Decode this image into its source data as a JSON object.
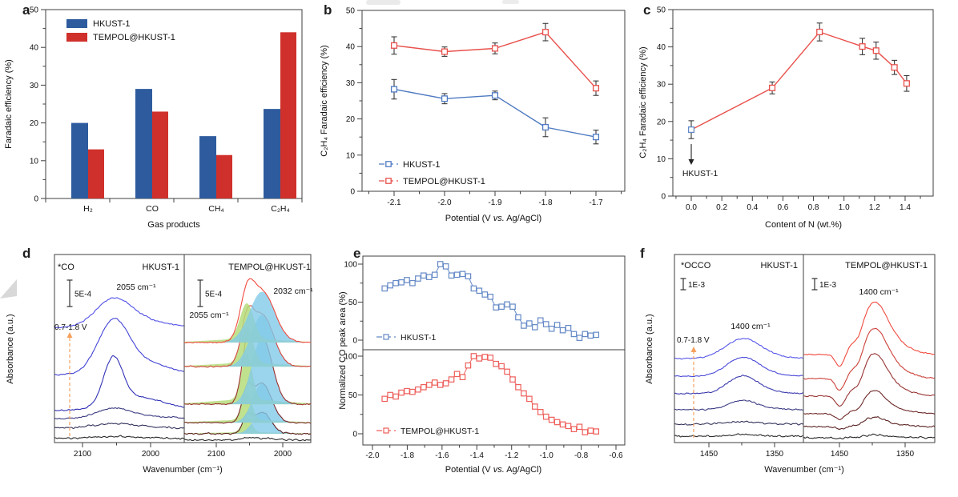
{
  "chart_data": [
    {
      "id": "a",
      "type": "bar",
      "label": "a",
      "xlabel": "Gas products",
      "ylabel": "Faradaic efficiency (%)",
      "ylim": [
        0,
        50
      ],
      "yticks": [
        0,
        10,
        20,
        30,
        40,
        50
      ],
      "categories": [
        "H₂",
        "CO",
        "CH₄",
        "C₂H₄"
      ],
      "series": [
        {
          "name": "HKUST-1",
          "color": "#2e5b9e",
          "values": [
            20,
            29,
            16.5,
            23.7
          ]
        },
        {
          "name": "TEMPOL@HKUST-1",
          "color": "#d0302b",
          "values": [
            13,
            23,
            11.5,
            44
          ]
        }
      ],
      "legend_position": "top-left"
    },
    {
      "id": "b",
      "type": "line",
      "label": "b",
      "xlabel_parts": [
        "Potential (V ",
        "vs.",
        " Ag/AgCl)"
      ],
      "ylabel": "C₂H₄ Faradaic efficiency (%)",
      "ylim": [
        0,
        50
      ],
      "yticks": [
        0,
        10,
        20,
        30,
        40,
        50
      ],
      "x": [
        -2.1,
        -2.0,
        -1.9,
        -1.8,
        -1.7
      ],
      "xticks": [
        "-2.1",
        "-2.0",
        "-1.9",
        "-1.8",
        "-1.7"
      ],
      "error_color": "#3a3a3a",
      "series": [
        {
          "name": "HKUST-1",
          "color": "#4f7ac2",
          "values": [
            28.2,
            25.6,
            26.5,
            17.7,
            15.0
          ],
          "errors": [
            2.7,
            1.4,
            1.2,
            2.6,
            1.9
          ]
        },
        {
          "name": "TEMPOL@HKUST-1",
          "color": "#e8514c",
          "values": [
            40.3,
            38.6,
            39.5,
            44.0,
            28.5
          ],
          "errors": [
            2.4,
            1.3,
            1.5,
            2.4,
            2.0
          ]
        }
      ]
    },
    {
      "id": "c",
      "type": "line",
      "label": "c",
      "xlabel": "Content of N (wt.%)",
      "ylabel": "C₂H₄ Faradaic efficiency (%)",
      "ylim": [
        0,
        50
      ],
      "yticks": [
        0,
        10,
        20,
        30,
        40,
        50
      ],
      "xticks": [
        "0.0",
        "0.2",
        "0.4",
        "0.6",
        "0.8",
        "1.0",
        "1.2",
        "1.4"
      ],
      "x": [
        0.0,
        0.53,
        0.84,
        1.12,
        1.21,
        1.33,
        1.41
      ],
      "y": [
        17.8,
        29.0,
        44.0,
        40.1,
        39.0,
        34.5,
        30.2
      ],
      "errors": [
        2.4,
        1.6,
        2.4,
        2.2,
        2.3,
        1.9,
        2.1
      ],
      "line_color": "#e8514c",
      "marker_color": "#e8514c",
      "first_marker_color": "#6489c6",
      "error_color": "#3a3a3a",
      "annotation": "HKUST-1"
    },
    {
      "id": "d",
      "type": "spectra",
      "label": "d",
      "xlabel": "Wavenumber (cm⁻¹)",
      "ylabel": "Absorbance (a.u.)",
      "x_ticks": [
        "2100",
        "2000"
      ],
      "voltage_range_label": "0.7-1.8 V",
      "panels": [
        {
          "title": "HKUST-1",
          "species_label": "*CO",
          "scalebar_label": "5E-4",
          "peak_labels": [
            "2055 cm⁻¹"
          ],
          "x_range": [
            2141,
            1950
          ],
          "peak_center": 2055,
          "traces": [
            {
              "color": "#2b2b2b",
              "offset": 0.022,
              "amp": 0.01,
              "sigma": 30
            },
            {
              "color": "#33335c",
              "offset": 0.077,
              "amp": 0.025,
              "sigma": 28
            },
            {
              "color": "#3b3b80",
              "offset": 0.128,
              "amp": 0.055,
              "sigma": 24
            },
            {
              "color": "#3232b8",
              "offset": 0.17,
              "amp": 0.29,
              "sigma": 14
            },
            {
              "color": "#4343d6",
              "offset": 0.36,
              "amp": 0.3,
              "sigma": 22
            },
            {
              "color": "#5050e8",
              "offset": 0.61,
              "amp": 0.16,
              "sigma": 26
            }
          ]
        },
        {
          "title": "TEMPOL@HKUST-1",
          "scalebar_label": "5E-4",
          "peak_labels": [
            "2055 cm⁻¹",
            "2032 cm⁻¹"
          ],
          "x_range": [
            2148,
            1958
          ],
          "fit_fills": [
            {
              "name": "2055 component",
              "color": "#b5dc7a",
              "center": 2054,
              "sigma": 10,
              "rel_amp": 0.62
            },
            {
              "name": "2032 component",
              "color": "#82cbe8",
              "center": 2031,
              "sigma": 19,
              "rel_amp": 0.88
            }
          ],
          "traces": [
            {
              "color": "#2b2b2b",
              "offset": 0.013,
              "amp": 0.012,
              "sigma": 20
            },
            {
              "color": "#5f2222",
              "offset": 0.047,
              "amp": 0.115,
              "sigma": 14
            },
            {
              "color": "#7c2828",
              "offset": 0.106,
              "amp": 0.213,
              "sigma": 15
            },
            {
              "color": "#9c302d",
              "offset": 0.204,
              "amp": 0.38,
              "sigma": 16
            },
            {
              "color": "#d4433c",
              "offset": 0.404,
              "amp": 0.323,
              "sigma": 18
            },
            {
              "color": "#f04a3e",
              "offset": 0.532,
              "amp": 0.34,
              "sigma": 20
            }
          ]
        }
      ]
    },
    {
      "id": "e",
      "type": "scatter",
      "label": "e",
      "xlabel_parts": [
        "Potential (V ",
        "vs.",
        " Ag/AgCl)"
      ],
      "ylabel": "Normalized CO peak area (%)",
      "yticks": [
        0,
        50,
        100
      ],
      "xticks": [
        "-2.0",
        "-1.8",
        "-1.6",
        "-1.4",
        "-1.2",
        "-1.0",
        "-0.8",
        "-0.6"
      ],
      "x": [
        -1.93,
        -1.898,
        -1.866,
        -1.834,
        -1.802,
        -1.77,
        -1.738,
        -1.706,
        -1.674,
        -1.642,
        -1.61,
        -1.578,
        -1.546,
        -1.514,
        -1.482,
        -1.45,
        -1.418,
        -1.386,
        -1.354,
        -1.322,
        -1.29,
        -1.258,
        -1.226,
        -1.194,
        -1.162,
        -1.13,
        -1.098,
        -1.066,
        -1.034,
        -1.002,
        -0.97,
        -0.938,
        -0.906,
        -0.874,
        -0.842,
        -0.81,
        -0.778,
        -0.746,
        -0.714
      ],
      "series": [
        {
          "name": "HKUST-1",
          "color": "#6489c6",
          "values": [
            68,
            72,
            75,
            76,
            79,
            75,
            81,
            85,
            83,
            86,
            100,
            97,
            85,
            86,
            87,
            84,
            68,
            65,
            60,
            57,
            43,
            44,
            47,
            44,
            30,
            19,
            22,
            17,
            26,
            21,
            15,
            20,
            13,
            16,
            8,
            3,
            8,
            6,
            7
          ]
        },
        {
          "name": "TEMPOL@HKUST-1",
          "color": "#ed5f5b",
          "values": [
            45,
            50,
            48,
            53,
            55,
            54,
            57,
            60,
            63,
            66,
            63,
            65,
            70,
            77,
            73,
            88,
            100,
            97,
            99,
            98,
            90,
            87,
            80,
            70,
            60,
            52,
            45,
            35,
            28,
            22,
            18,
            15,
            12,
            10,
            6,
            9,
            2,
            4,
            3
          ]
        }
      ]
    },
    {
      "id": "f",
      "type": "spectra",
      "label": "f",
      "xlabel": "Wavenumber (cm⁻¹)",
      "ylabel": "Absorbance (a.u.)",
      "x_ticks": [
        "1450",
        "1350"
      ],
      "voltage_range_label": "0.7-1.8 V",
      "panels": [
        {
          "title": "HKUST-1",
          "species_label": "*OCCO",
          "scalebar_label": "1E-3",
          "peak_labels": [
            "1400 cm⁻¹"
          ],
          "x_range": [
            1502,
            1307
          ],
          "peak_center": 1400,
          "traces": [
            {
              "color": "#2b2b2b",
              "offset": 0.034,
              "amp": 0.008,
              "sigma": 20
            },
            {
              "color": "#32325a",
              "offset": 0.098,
              "amp": 0.015,
              "sigma": 20
            },
            {
              "color": "#3b3b85",
              "offset": 0.175,
              "amp": 0.05,
              "sigma": 20
            },
            {
              "color": "#3b3bb0",
              "offset": 0.26,
              "amp": 0.095,
              "sigma": 22
            },
            {
              "color": "#4848d8",
              "offset": 0.353,
              "amp": 0.1,
              "sigma": 24
            },
            {
              "color": "#5656ea",
              "offset": 0.447,
              "amp": 0.107,
              "sigma": 26
            }
          ]
        },
        {
          "title": "TEMPOL@HKUST-1",
          "scalebar_label": "1E-3",
          "peak_labels": [
            "1400 cm⁻¹"
          ],
          "x_range": [
            1504,
            1305
          ],
          "peak_center": 1400,
          "traces": [
            {
              "color": "#2b2b2b",
              "offset": 0.026,
              "amp": 0.015,
              "sigma": 16
            },
            {
              "color": "#5c2424",
              "offset": 0.085,
              "amp": 0.05,
              "sigma": 16
            },
            {
              "color": "#6f2a2a",
              "offset": 0.153,
              "amp": 0.123,
              "sigma": 17
            },
            {
              "color": "#973231",
              "offset": 0.247,
              "amp": 0.226,
              "sigma": 18
            },
            {
              "color": "#cc4038",
              "offset": 0.34,
              "amp": 0.268,
              "sigma": 19
            },
            {
              "color": "#f04a3e",
              "offset": 0.468,
              "amp": 0.277,
              "sigma": 20
            }
          ]
        }
      ]
    }
  ],
  "style": {
    "axis_color": "#3f3f3f",
    "text_color": "#111111",
    "arrow_color": "#f5a15d"
  }
}
